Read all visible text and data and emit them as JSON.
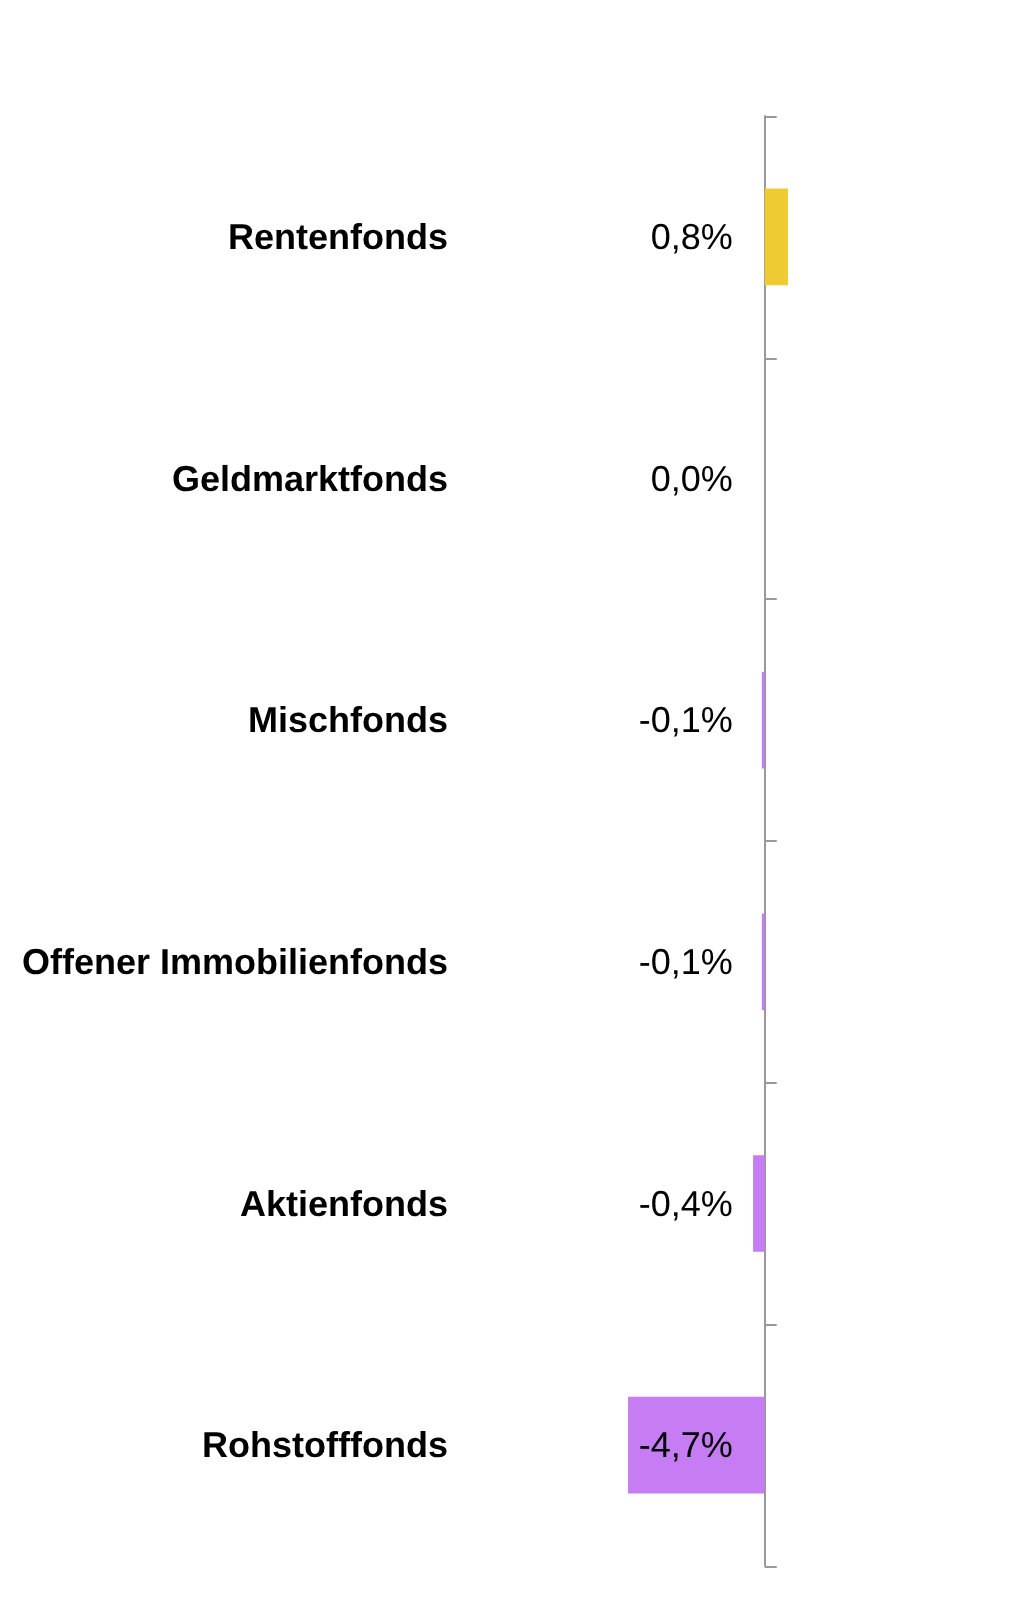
{
  "chart_data": {
    "type": "bar",
    "orientation": "horizontal",
    "categories": [
      "Rentenfonds",
      "Geldmarktfonds",
      "Mischfonds",
      "Offener Immobilienfonds",
      "Aktienfonds",
      "Rohstofffonds"
    ],
    "values": [
      0.8,
      0.0,
      -0.1,
      -0.1,
      -0.4,
      -4.7
    ],
    "colors": [
      "#efcb33",
      "#b9b9b9",
      "#c67cf2",
      "#c67cf2",
      "#c67cf2",
      "#c67cf2"
    ],
    "value_labels": [
      "0,8%",
      "0,0%",
      "-0,1%",
      "-0,1%",
      "-0,4%",
      "-4,7%"
    ]
  }
}
